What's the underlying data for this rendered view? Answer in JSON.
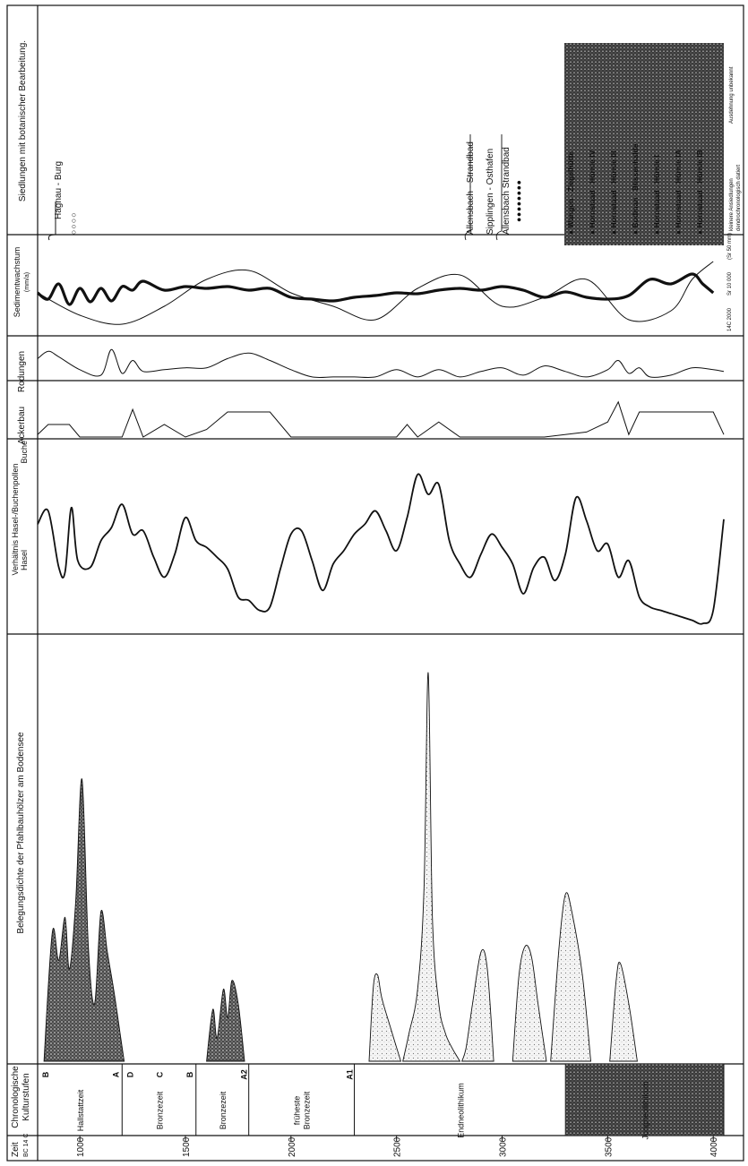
{
  "chart_data": {
    "type": "line",
    "orientation": "rotated 90° — time axis runs horizontally along the page bottom",
    "time_axis": {
      "label_line1": "Zeit",
      "label_line2": "BC 14 C",
      "ticks": [
        1000,
        1500,
        2000,
        2500,
        3000,
        3500,
        4000
      ],
      "range": [
        800,
        4050
      ]
    },
    "columns": {
      "zeit": "Zeit BC 14 C",
      "chrono": [
        "Chronologische",
        "Kulturstufen"
      ],
      "belegung": "Belegungsdichte der Pfahlbauhölzer am Bodensee",
      "verhaeltnis": [
        "Verhältnis Hasel-/Buchenpollen",
        "Hasel",
        "Buche"
      ],
      "ackerbau": "Ackerbau",
      "rodungen": "Rodungen",
      "sediment": [
        "Sedimentwachstum",
        "(mm/a)"
      ],
      "siedlungen": "Siedlungen mit botanischer Bearbeitung."
    },
    "cultural_stages": [
      {
        "name": "Hallstattzeit",
        "from": 800,
        "to": 1200,
        "letters": [
          "B",
          "A"
        ]
      },
      {
        "name": "Bronzezeit",
        "from": 1200,
        "to": 1550,
        "letters": [
          "D",
          "C",
          "B"
        ]
      },
      {
        "name": "Bronzezeit",
        "from": 1550,
        "to": 1800,
        "letters": [
          "A2"
        ]
      },
      {
        "name": "früheste Bronzezeit",
        "from": 1800,
        "to": 2300,
        "letters": [
          "A1"
        ]
      },
      {
        "name": "Endneolithikum",
        "from": 2300,
        "to": 3300,
        "letters": []
      },
      {
        "name": "Jungneolithikum",
        "from": 3300,
        "to": 4050,
        "letters": []
      }
    ],
    "belegung": {
      "series": [
        {
          "name": "dicht",
          "x": [
            830,
            870,
            900,
            930,
            950,
            980,
            1010,
            1040,
            1070,
            1100,
            1130,
            1160,
            1190,
            1210
          ],
          "y": [
            0,
            45,
            35,
            50,
            32,
            55,
            98,
            40,
            20,
            52,
            38,
            25,
            10,
            0
          ]
        },
        {
          "name": "dicht",
          "x": [
            1600,
            1630,
            1650,
            1680,
            1700,
            1720,
            1750,
            1780
          ],
          "y": [
            0,
            18,
            8,
            25,
            15,
            28,
            20,
            0
          ]
        },
        {
          "name": "locker",
          "x": [
            2370,
            2390,
            2410,
            2430,
            2470,
            2520
          ],
          "y": [
            0,
            26,
            30,
            22,
            12,
            0
          ]
        },
        {
          "name": "locker",
          "x": [
            2530,
            2560,
            2600,
            2630,
            2650,
            2670,
            2700,
            2730,
            2760,
            2800
          ],
          "y": [
            0,
            10,
            25,
            60,
            135,
            50,
            20,
            10,
            5,
            0
          ]
        },
        {
          "name": "locker",
          "x": [
            2810,
            2830,
            2860,
            2900,
            2930,
            2960
          ],
          "y": [
            0,
            5,
            20,
            38,
            32,
            0
          ]
        },
        {
          "name": "locker",
          "x": [
            3050,
            3080,
            3110,
            3140,
            3170,
            3210
          ],
          "y": [
            0,
            30,
            40,
            36,
            20,
            0
          ]
        },
        {
          "name": "locker",
          "x": [
            3230,
            3270,
            3300,
            3330,
            3380,
            3420
          ],
          "y": [
            0,
            40,
            58,
            52,
            30,
            0
          ]
        },
        {
          "name": "locker",
          "x": [
            3510,
            3540,
            3560,
            3600,
            3640
          ],
          "y": [
            0,
            28,
            34,
            20,
            0
          ]
        }
      ]
    },
    "verhaeltnis_hasel_buche": {
      "x": [
        800,
        850,
        900,
        930,
        960,
        990,
        1050,
        1100,
        1150,
        1200,
        1250,
        1300,
        1350,
        1400,
        1450,
        1500,
        1550,
        1600,
        1650,
        1700,
        1750,
        1800,
        1850,
        1900,
        1950,
        2000,
        2050,
        2100,
        2150,
        2200,
        2250,
        2300,
        2350,
        2400,
        2450,
        2500,
        2550,
        2600,
        2650,
        2700,
        2750,
        2800,
        2850,
        2900,
        2950,
        3000,
        3050,
        3100,
        3150,
        3200,
        3250,
        3300,
        3350,
        3400,
        3450,
        3500,
        3550,
        3600,
        3650,
        3700,
        3750,
        3800,
        3850,
        3900,
        3950,
        4000,
        4050
      ],
      "y": [
        0.62,
        0.7,
        0.36,
        0.33,
        0.72,
        0.4,
        0.36,
        0.52,
        0.6,
        0.74,
        0.56,
        0.58,
        0.42,
        0.3,
        0.44,
        0.66,
        0.52,
        0.48,
        0.42,
        0.35,
        0.18,
        0.16,
        0.1,
        0.12,
        0.35,
        0.56,
        0.58,
        0.4,
        0.22,
        0.38,
        0.46,
        0.56,
        0.62,
        0.7,
        0.58,
        0.46,
        0.66,
        0.92,
        0.8,
        0.86,
        0.52,
        0.38,
        0.3,
        0.44,
        0.56,
        0.48,
        0.38,
        0.2,
        0.36,
        0.42,
        0.28,
        0.44,
        0.78,
        0.64,
        0.46,
        0.5,
        0.3,
        0.4,
        0.18,
        0.12,
        0.1,
        0.08,
        0.06,
        0.04,
        0.02,
        0.1,
        0.65
      ]
    },
    "ackerbau": {
      "x": [
        800,
        850,
        950,
        1000,
        1200,
        1250,
        1300,
        1350,
        1400,
        1500,
        1600,
        1700,
        1800,
        1900,
        2000,
        2100,
        2300,
        2500,
        2550,
        2600,
        2650,
        2700,
        2800,
        3000,
        3200,
        3300,
        3400,
        3500,
        3520,
        3550,
        3600,
        3650,
        3800,
        4000,
        4050
      ],
      "y": [
        0.05,
        0.25,
        0.25,
        0.0,
        0.0,
        0.0,
        0.0,
        0.0,
        0.0,
        0.0,
        0.0,
        0.0,
        0.0,
        0.0,
        0.0,
        0.0,
        0.0,
        0.0,
        0.0,
        0.0,
        0.0,
        0.0,
        0.0,
        0.0,
        0.0,
        0.0,
        0.0,
        0.0,
        0.0,
        0.0,
        0.0,
        0.0,
        0.0,
        0.0,
        0.0
      ]
    },
    "rodungen": {
      "x": [
        800,
        850,
        900,
        1000,
        1100,
        1150,
        1200,
        1250,
        1300,
        1400,
        1500,
        1600,
        1700,
        1800,
        1900,
        2000,
        2100,
        2200,
        2300,
        2400,
        2500,
        2600,
        2700,
        2800,
        2900,
        3000,
        3100,
        3200,
        3300,
        3400,
        3500,
        3550,
        3600,
        3650,
        3700,
        3800,
        3900,
        4000,
        4050
      ],
      "y": [
        0.55,
        0.75,
        0.6,
        0.25,
        0.1,
        0.8,
        0.15,
        0.5,
        0.2,
        0.25,
        0.3,
        0.3,
        0.55,
        0.7,
        0.5,
        0.25,
        0.05,
        0.05,
        0.05,
        0.05,
        0.25,
        0.05,
        0.25,
        0.05,
        0.2,
        0.3,
        0.1,
        0.35,
        0.2,
        0.05,
        0.25,
        0.5,
        0.15,
        0.3,
        0.05,
        0.1,
        0.3,
        0.25,
        0.2
      ]
    },
    "sediment": {
      "series": [
        {
          "name": "dick",
          "x": [
            800,
            850,
            900,
            950,
            1000,
            1050,
            1100,
            1150,
            1200,
            1250,
            1300,
            1400,
            1500,
            1600,
            1700,
            1800,
            1900,
            2000,
            2100,
            2200,
            2300,
            2400,
            2500,
            2600,
            2700,
            2800,
            2900,
            3000,
            3100,
            3200,
            3300,
            3400,
            3500,
            3600,
            3700,
            3800,
            3900,
            3950,
            4000
          ],
          "y": [
            0.45,
            0.38,
            0.55,
            0.32,
            0.5,
            0.35,
            0.5,
            0.36,
            0.52,
            0.48,
            0.58,
            0.48,
            0.52,
            0.5,
            0.52,
            0.48,
            0.5,
            0.4,
            0.38,
            0.36,
            0.4,
            0.42,
            0.45,
            0.44,
            0.48,
            0.5,
            0.48,
            0.52,
            0.48,
            0.4,
            0.46,
            0.4,
            0.38,
            0.42,
            0.6,
            0.55,
            0.66,
            0.55,
            0.45
          ]
        },
        {
          "name": "dünn",
          "x": [
            800,
            1000,
            1200,
            1400,
            1600,
            1800,
            2000,
            2200,
            2400,
            2600,
            2800,
            3000,
            3200,
            3400,
            3600,
            3800,
            3900,
            4000
          ],
          "y": [
            0.45,
            0.2,
            0.1,
            0.3,
            0.6,
            0.7,
            0.45,
            0.3,
            0.15,
            0.5,
            0.65,
            0.3,
            0.4,
            0.6,
            0.15,
            0.25,
            0.6,
            0.8
          ]
        }
      ]
    }
  },
  "siedlungen": {
    "group1": {
      "symbols": "○○○○",
      "name": "Hagnau - Burg"
    },
    "group2": {
      "symbols": "●●●●●●●●",
      "names": [
        "Allensbach - Strandbad",
        "Sipplingen - Osthafen",
        "Allensbach Strandbad"
      ]
    },
    "dark_list": [
      "Wangen - Ziegelhütte",
      "Hornstaad - Hörnle IV",
      "Hornstaad - Hörnle III",
      "Bodman - Blissenhalde",
      "Hornstaad - Hörnle I",
      "Hornstaad - Hörnle IA",
      "Hornstaad - Hörnle IB"
    ],
    "legend": [
      "kleinere Ansiedlungen",
      "dendrochronologisch datiert",
      "Ausdehnung unbekannt"
    ]
  },
  "sediment_notes": [
    "14C 2000",
    "Sr 10 000",
    "(Sr 50 mm)"
  ]
}
